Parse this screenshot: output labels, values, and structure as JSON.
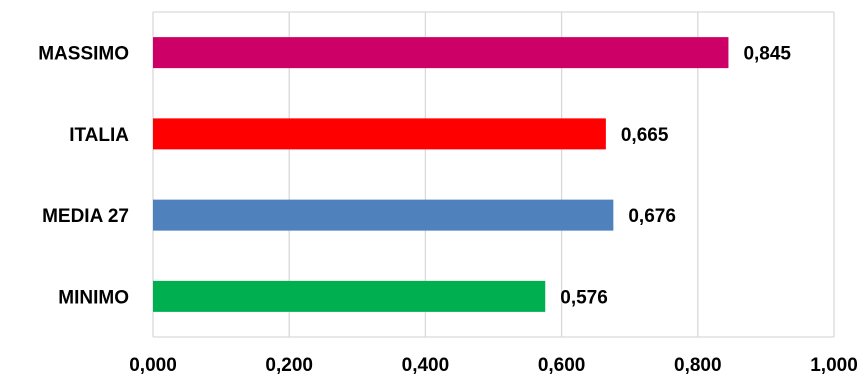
{
  "chart_data": {
    "type": "bar",
    "orientation": "horizontal",
    "title": "",
    "xlabel": "",
    "ylabel": "",
    "categories": [
      "MASSIMO",
      "ITALIA",
      "MEDIA 27",
      "MINIMO"
    ],
    "values": [
      0.845,
      0.665,
      0.676,
      0.576
    ],
    "value_labels": [
      "0,845",
      "0,665",
      "0,676",
      "0,576"
    ],
    "colors": [
      "#cc0066",
      "#ff0000",
      "#4f81bd",
      "#00b050"
    ],
    "xlim": [
      0,
      1
    ],
    "x_ticks": [
      0,
      0.2,
      0.4,
      0.6,
      0.8,
      1.0
    ],
    "x_tick_labels": [
      "0,000",
      "0,200",
      "0,400",
      "0,600",
      "0,800",
      "1,000"
    ],
    "grid": true,
    "gridline_color": "#d9d9d9",
    "legend": "none"
  }
}
